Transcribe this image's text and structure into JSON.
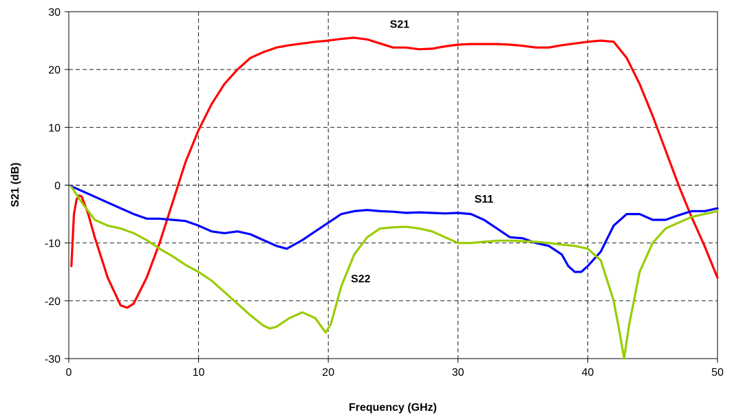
{
  "chart_data": {
    "type": "line",
    "xlabel": "Frequency (GHz)",
    "ylabel": "S21 (dB)",
    "xlim": [
      0,
      50
    ],
    "ylim": [
      -30,
      30
    ],
    "xticks": [
      0,
      10,
      20,
      30,
      40,
      50
    ],
    "yticks": [
      -30,
      -20,
      -10,
      0,
      10,
      20,
      30
    ],
    "grid": true,
    "legend": "none",
    "series": [
      {
        "name": "S21",
        "color": "#ff0000",
        "x": [
          0.2,
          0.4,
          0.6,
          0.8,
          1.0,
          1.5,
          2.0,
          3.0,
          4.0,
          4.5,
          5.0,
          6.0,
          7.0,
          8.0,
          9.0,
          10.0,
          11.0,
          12.0,
          13.0,
          14.0,
          15.0,
          16.0,
          17.0,
          18.0,
          19.0,
          20.0,
          21.0,
          22.0,
          23.0,
          24.0,
          25.0,
          26.0,
          27.0,
          28.0,
          29.0,
          30.0,
          31.0,
          32.0,
          33.0,
          34.0,
          35.0,
          36.0,
          37.0,
          38.0,
          39.0,
          40.0,
          41.0,
          42.0,
          43.0,
          44.0,
          45.0,
          46.0,
          47.0,
          48.0,
          49.0,
          50.0
        ],
        "y": [
          -14,
          -5,
          -2.5,
          -1.8,
          -2,
          -5,
          -9,
          -16,
          -20.8,
          -21.2,
          -20.5,
          -16,
          -10,
          -3,
          4,
          9.5,
          14,
          17.5,
          20,
          22,
          23,
          23.8,
          24.2,
          24.5,
          24.8,
          25,
          25.3,
          25.5,
          25.2,
          24.5,
          23.8,
          23.8,
          23.5,
          23.6,
          24,
          24.3,
          24.4,
          24.4,
          24.4,
          24.3,
          24.1,
          23.8,
          23.8,
          24.2,
          24.5,
          24.8,
          25.0,
          24.8,
          22.0,
          17.5,
          12.0,
          6.0,
          0,
          -5.5,
          -10.5,
          -16
        ]
      },
      {
        "name": "S11",
        "color": "#0000ff",
        "x": [
          0.2,
          1,
          2,
          3,
          4,
          5,
          6,
          7,
          8,
          9,
          10,
          11,
          12,
          13,
          14,
          15,
          16,
          16.8,
          18,
          19,
          20,
          21,
          22,
          23,
          24,
          25,
          26,
          27,
          28,
          29,
          30,
          31,
          32,
          33,
          34,
          35,
          36,
          37,
          38,
          38.5,
          39,
          39.5,
          40,
          41,
          42,
          43,
          44,
          45,
          46,
          47,
          48,
          49,
          50
        ],
        "y": [
          -0.2,
          -1,
          -2,
          -3,
          -4,
          -5,
          -5.8,
          -5.8,
          -6,
          -6.2,
          -7,
          -8,
          -8.3,
          -8,
          -8.5,
          -9.5,
          -10.5,
          -11,
          -9.5,
          -8,
          -6.5,
          -5,
          -4.5,
          -4.3,
          -4.5,
          -4.6,
          -4.8,
          -4.7,
          -4.8,
          -4.9,
          -4.8,
          -5,
          -6,
          -7.5,
          -9,
          -9.2,
          -10,
          -10.5,
          -12,
          -14,
          -15,
          -15,
          -14,
          -11.5,
          -7,
          -5,
          -5,
          -6,
          -6,
          -5.2,
          -4.5,
          -4.5,
          -4
        ]
      },
      {
        "name": "S22",
        "color": "#99cc00",
        "x": [
          0.2,
          1,
          2,
          3,
          4,
          5,
          6,
          7,
          8,
          9,
          10,
          11,
          12,
          13,
          14,
          15,
          15.5,
          16,
          17,
          18,
          19,
          19.8,
          20.2,
          21,
          22,
          23,
          24,
          25,
          26,
          27,
          28,
          29,
          30,
          31,
          32,
          33,
          34,
          35,
          36,
          37,
          38,
          39,
          40,
          41,
          42,
          42.5,
          42.8,
          43.2,
          44,
          45,
          46,
          47,
          48,
          49,
          50
        ],
        "y": [
          -0.3,
          -3,
          -6,
          -7,
          -7.5,
          -8.3,
          -9.5,
          -11,
          -12.3,
          -13.8,
          -15,
          -16.5,
          -18.5,
          -20.5,
          -22.5,
          -24.3,
          -24.8,
          -24.5,
          -23,
          -22,
          -23,
          -25.5,
          -24,
          -17.5,
          -12,
          -9,
          -7.5,
          -7.3,
          -7.2,
          -7.5,
          -8,
          -9,
          -10,
          -10,
          -9.8,
          -9.6,
          -9.6,
          -9.7,
          -9.8,
          -10,
          -10.3,
          -10.5,
          -11,
          -13,
          -20,
          -26,
          -30,
          -24,
          -15,
          -10,
          -7.5,
          -6.5,
          -5.5,
          -5,
          -4.5
        ]
      }
    ],
    "annotations": [
      {
        "text": "S21",
        "x": 25.5,
        "y": 27.2
      },
      {
        "text": "S11",
        "x": 32.0,
        "y": -3.0
      },
      {
        "text": "S22",
        "x": 22.5,
        "y": -16.8
      }
    ]
  }
}
